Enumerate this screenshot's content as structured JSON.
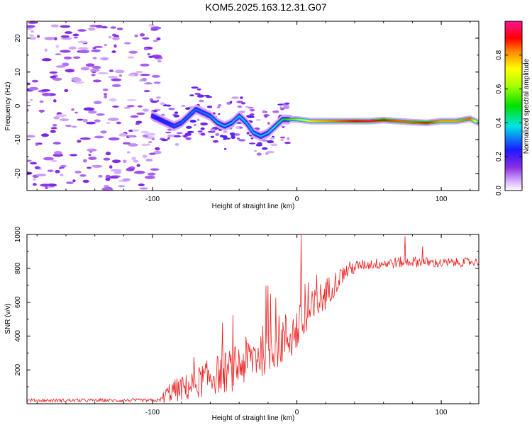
{
  "title": "KOM5.2025.163.12.31.G07",
  "chart_data": [
    {
      "type": "heatmap",
      "xlabel": "Height of straight line (km)",
      "ylabel": "Frequency (Hz)",
      "xlim": [
        -187,
        126
      ],
      "ylim": [
        -25,
        25
      ],
      "x_ticks": [
        -100,
        0,
        100
      ],
      "y_ticks": [
        -20,
        -10,
        0,
        10,
        20
      ],
      "colorbar": {
        "label": "Normalized spectral amplitude",
        "range": [
          0,
          1
        ],
        "ticks": [
          0.0,
          0.2,
          0.4,
          0.6,
          0.8
        ]
      },
      "ridge": {
        "x": [
          -100,
          -95,
          -90,
          -85,
          -80,
          -75,
          -70,
          -65,
          -60,
          -55,
          -50,
          -45,
          -40,
          -35,
          -30,
          -25,
          -20,
          -15,
          -10,
          -5,
          0,
          10,
          20,
          30,
          40,
          50,
          60,
          70,
          80,
          90,
          100,
          110,
          120,
          126
        ],
        "frequency": [
          -3,
          -4,
          -5,
          -6,
          -5,
          -3,
          -1,
          -2,
          -3,
          -5,
          -6,
          -5,
          -3,
          -5,
          -8,
          -9,
          -8,
          -6,
          -4,
          -4,
          -4,
          -4.5,
          -4.5,
          -4.5,
          -4.5,
          -4.5,
          -4.2,
          -4.5,
          -4.8,
          -5,
          -4.5,
          -4.5,
          -3.8,
          -5
        ],
        "amplitude": [
          0.2,
          0.25,
          0.25,
          0.28,
          0.3,
          0.3,
          0.3,
          0.3,
          0.32,
          0.35,
          0.35,
          0.35,
          0.35,
          0.35,
          0.35,
          0.35,
          0.35,
          0.4,
          0.45,
          0.55,
          0.6,
          0.75,
          0.8,
          0.85,
          0.9,
          0.95,
          0.9,
          0.85,
          0.85,
          0.9,
          0.8,
          0.8,
          0.85,
          0.6
        ]
      }
    },
    {
      "type": "line",
      "xlabel": "Height of straight line (km)",
      "ylabel": "SNR (v/v)",
      "xlim": [
        -187,
        126
      ],
      "ylim": [
        0,
        1000
      ],
      "x_ticks": [
        -100,
        0,
        100
      ],
      "y_ticks": [
        200,
        400,
        600,
        800,
        1000
      ],
      "series": [
        {
          "color": "#ee2222",
          "trend": {
            "x": [
              -187,
              -95,
              -88,
              -75,
              -60,
              -45,
              -30,
              -15,
              -5,
              5,
              15,
              25,
              35,
              45,
              60,
              80,
              100,
              126
            ],
            "y": [
              20,
              20,
              70,
              100,
              160,
              200,
              280,
              360,
              400,
              470,
              600,
              700,
              790,
              820,
              830,
              840,
              830,
              840
            ]
          },
          "spread": {
            "x": [
              -187,
              -95,
              -90,
              -60,
              -30,
              -10,
              10,
              30,
              45,
              60,
              126
            ],
            "y": [
              10,
              10,
              60,
              110,
              150,
              160,
              130,
              60,
              30,
              35,
              25
            ]
          },
          "spikes": [
            {
              "x": 3,
              "y": 1000
            },
            {
              "x": 75,
              "y": 990
            },
            {
              "x": 87,
              "y": 930
            }
          ]
        }
      ]
    }
  ]
}
